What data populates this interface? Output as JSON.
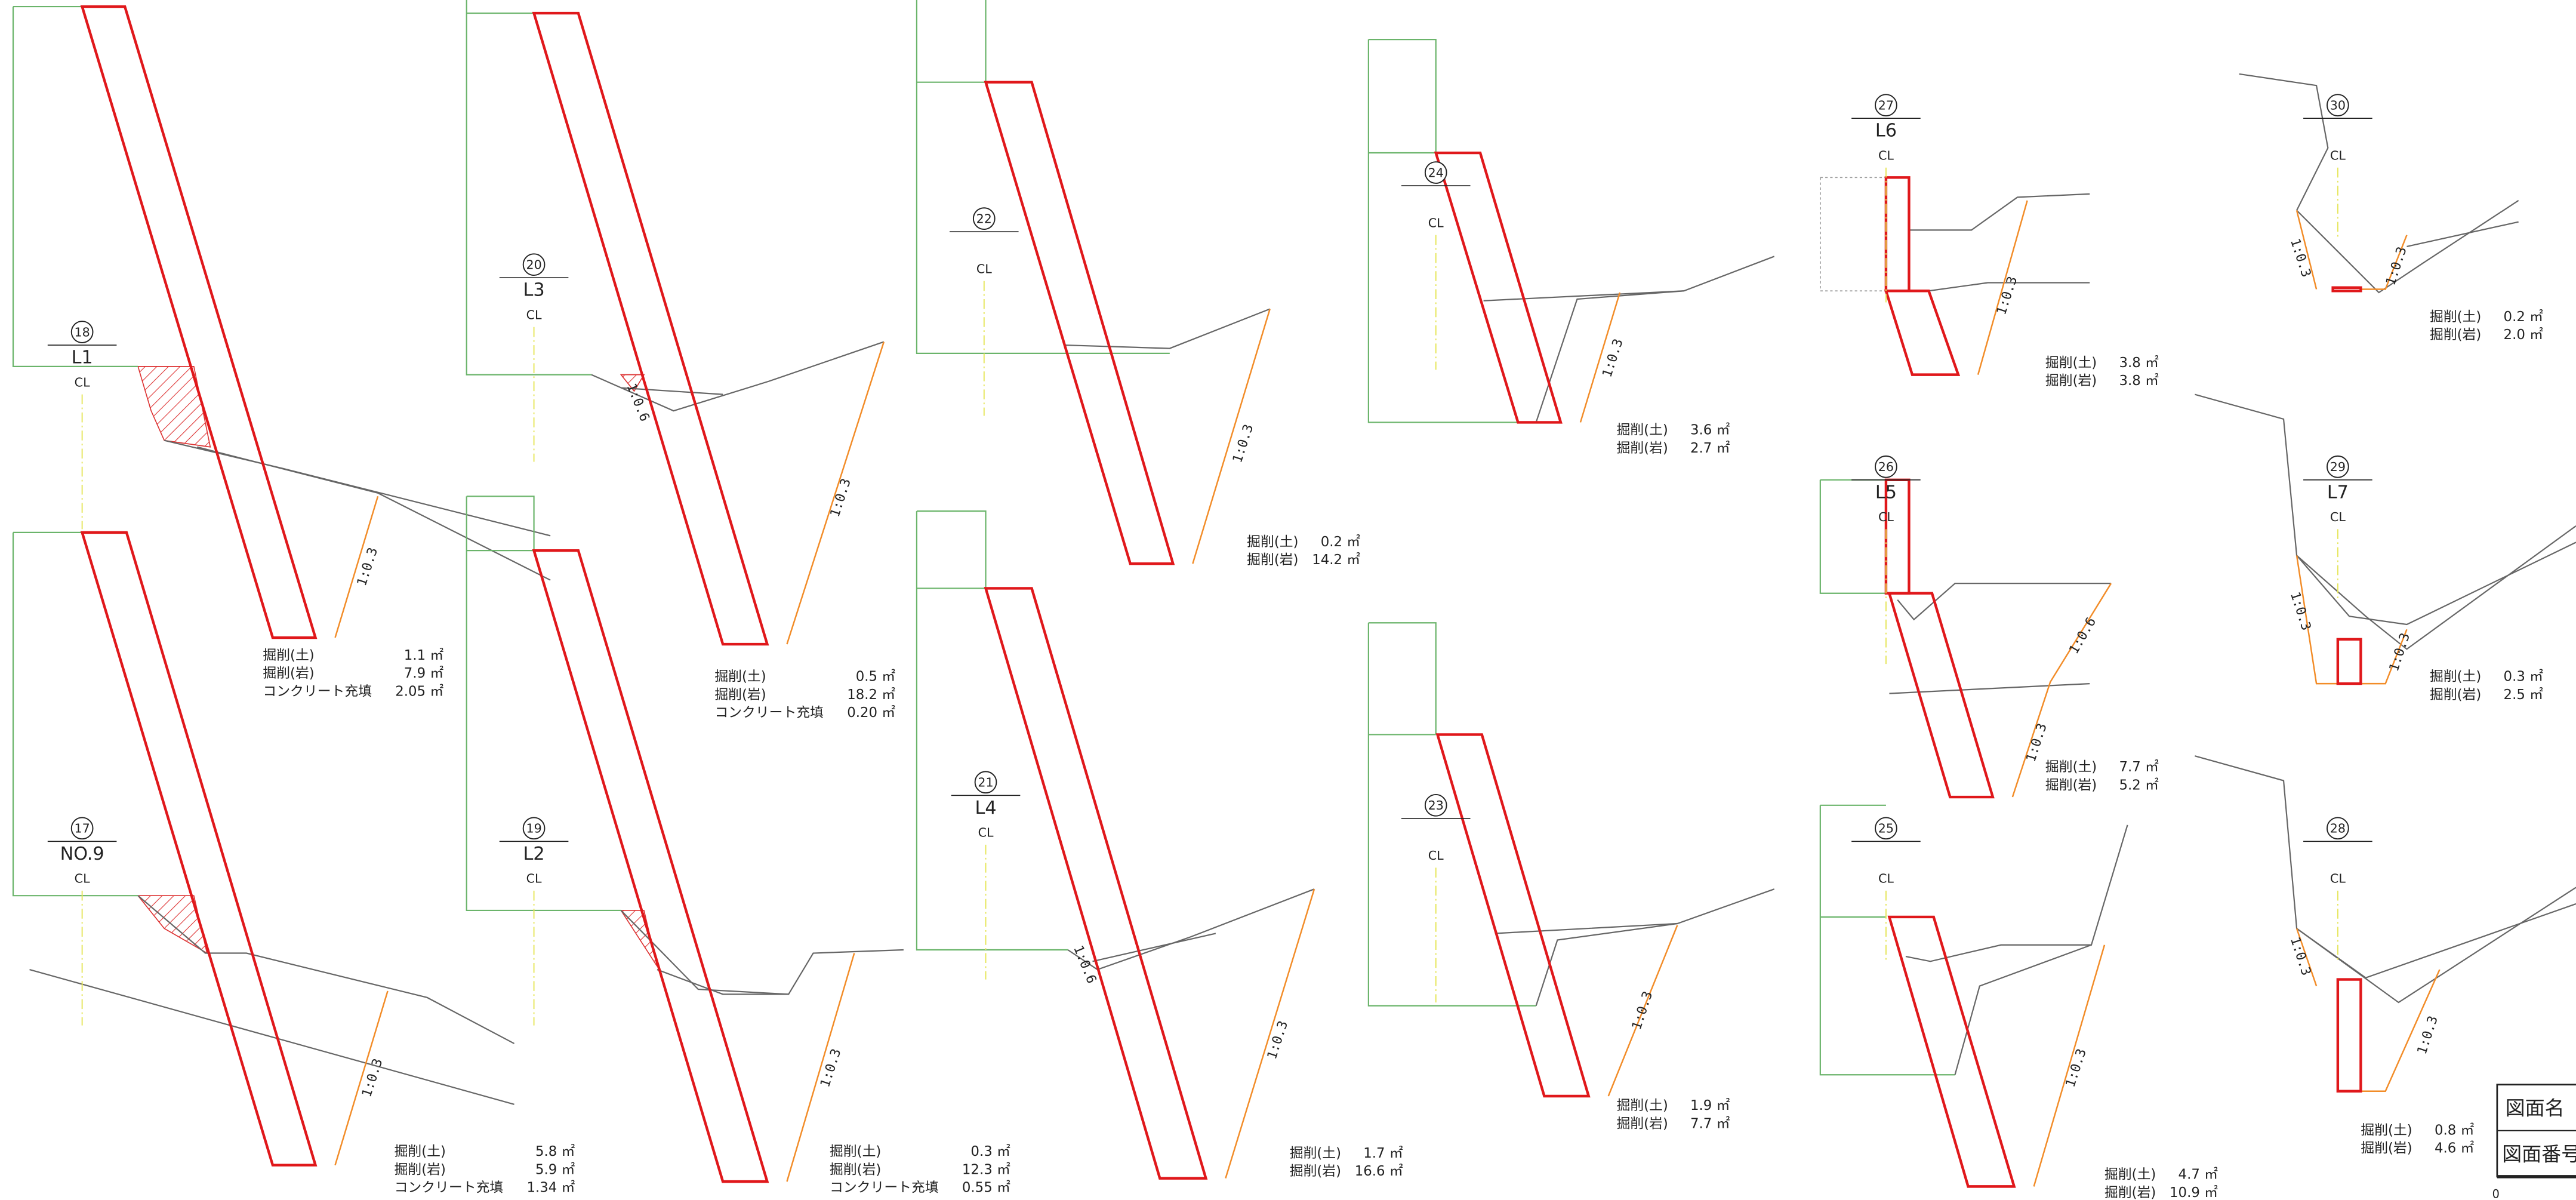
{
  "sections": [
    {
      "number": "18",
      "name": "L1",
      "cl": "CL",
      "slopes": [
        "1:0.3"
      ],
      "quantities": [
        {
          "label": "掘削(土)",
          "value": "1.1 ㎡"
        },
        {
          "label": "掘削(岩)",
          "value": "7.9 ㎡"
        },
        {
          "label": "コンクリート充填",
          "value": "2.05 ㎡"
        }
      ]
    },
    {
      "number": "20",
      "name": "L3",
      "cl": "CL",
      "slopes": [
        "1:0.6",
        "1:0.3"
      ],
      "quantities": [
        {
          "label": "掘削(土)",
          "value": "0.5 ㎡"
        },
        {
          "label": "掘削(岩)",
          "value": "18.2 ㎡"
        },
        {
          "label": "コンクリート充填",
          "value": "0.20 ㎡"
        }
      ]
    },
    {
      "number": "22",
      "cl": "CL",
      "slopes": [
        "1:0.3"
      ],
      "quantities": [
        {
          "label": "掘削(土)",
          "value": "0.2 ㎡"
        },
        {
          "label": "掘削(岩)",
          "value": "14.2 ㎡"
        }
      ]
    },
    {
      "number": "24",
      "cl": "CL",
      "slopes": [
        "1:0.3"
      ],
      "quantities": [
        {
          "label": "掘削(土)",
          "value": "3.6 ㎡"
        },
        {
          "label": "掘削(岩)",
          "value": "2.7 ㎡"
        }
      ]
    },
    {
      "number": "27",
      "name": "L6",
      "cl": "CL",
      "slopes": [
        "1:0.3"
      ],
      "quantities": [
        {
          "label": "掘削(土)",
          "value": "3.8 ㎡"
        },
        {
          "label": "掘削(岩)",
          "value": "3.8 ㎡"
        }
      ]
    },
    {
      "number": "30",
      "cl": "CL",
      "slopes": [
        "1:0.3",
        "1:0.3"
      ],
      "quantities": [
        {
          "label": "掘削(土)",
          "value": "0.2 ㎡"
        },
        {
          "label": "掘削(岩)",
          "value": "2.0 ㎡"
        }
      ]
    },
    {
      "number": "17",
      "name": "NO.9",
      "cl": "CL",
      "slopes": [
        "1:0.3"
      ],
      "quantities": [
        {
          "label": "掘削(土)",
          "value": "5.8 ㎡"
        },
        {
          "label": "掘削(岩)",
          "value": "5.9 ㎡"
        },
        {
          "label": "コンクリート充填",
          "value": "1.34 ㎡"
        }
      ]
    },
    {
      "number": "19",
      "name": "L2",
      "cl": "CL",
      "slopes": [
        "1:0.3"
      ],
      "quantities": [
        {
          "label": "掘削(土)",
          "value": "0.3 ㎡"
        },
        {
          "label": "掘削(岩)",
          "value": "12.3 ㎡"
        },
        {
          "label": "コンクリート充填",
          "value": "0.55 ㎡"
        }
      ]
    },
    {
      "number": "21",
      "name": "L4",
      "cl": "CL",
      "slopes": [
        "1:0.6",
        "1:0.3"
      ],
      "quantities": [
        {
          "label": "掘削(土)",
          "value": "1.7 ㎡"
        },
        {
          "label": "掘削(岩)",
          "value": "16.6 ㎡"
        }
      ]
    },
    {
      "number": "23",
      "cl": "CL",
      "slopes": [
        "1:0.3"
      ],
      "quantities": [
        {
          "label": "掘削(土)",
          "value": "1.9 ㎡"
        },
        {
          "label": "掘削(岩)",
          "value": "7.7 ㎡"
        }
      ]
    },
    {
      "number": "26",
      "name": "L5",
      "cl": "CL",
      "slopes": [
        "1:0.6",
        "1:0.3"
      ],
      "quantities": [
        {
          "label": "掘削(土)",
          "value": "7.7 ㎡"
        },
        {
          "label": "掘削(岩)",
          "value": "5.2 ㎡"
        }
      ]
    },
    {
      "number": "29",
      "name": "L7",
      "cl": "CL",
      "slopes": [
        "1:0.3",
        "1:0.3"
      ],
      "quantities": [
        {
          "label": "掘削(土)",
          "value": "0.3 ㎡"
        },
        {
          "label": "掘削(岩)",
          "value": "2.5 ㎡"
        }
      ]
    },
    {
      "number": "25",
      "cl": "CL",
      "slopes": [
        "1:0.3"
      ],
      "quantities": [
        {
          "label": "掘削(土)",
          "value": "4.7 ㎡"
        },
        {
          "label": "掘削(岩)",
          "value": "10.9 ㎡"
        }
      ]
    },
    {
      "number": "28",
      "cl": "CL",
      "slopes": [
        "1:0.3",
        "1:0.3"
      ],
      "quantities": [
        {
          "label": "掘削(土)",
          "value": "0.8 ㎡"
        },
        {
          "label": "掘削(岩)",
          "value": "4.6 ㎡"
        }
      ]
    }
  ],
  "title_block": {
    "drawing_name": "図面名",
    "drawing_number": "図面番号",
    "scale_start": "0"
  }
}
